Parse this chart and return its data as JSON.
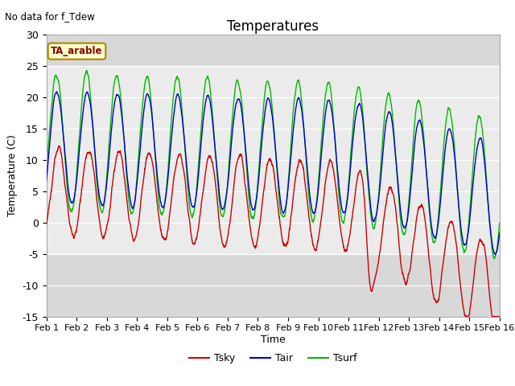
{
  "title": "Temperatures",
  "xlabel": "Time",
  "ylabel": "Temperature (C)",
  "note": "No data for f_Tdew",
  "subtitle_box": "TA_arable",
  "ylim": [
    -15,
    30
  ],
  "xlim": [
    0,
    15
  ],
  "xtick_labels": [
    "Feb 1",
    "Feb 2",
    "Feb 3",
    "Feb 4",
    "Feb 5",
    "Feb 6",
    "Feb 7",
    "Feb 8",
    "Feb 9",
    "Feb 10",
    "Feb 11",
    "Feb 12",
    "Feb 13",
    "Feb 14",
    "Feb 15",
    "Feb 16"
  ],
  "xtick_positions": [
    0,
    1,
    2,
    3,
    4,
    5,
    6,
    7,
    8,
    9,
    10,
    11,
    12,
    13,
    14,
    15
  ],
  "ytick_positions": [
    -15,
    -10,
    -5,
    0,
    5,
    10,
    15,
    20,
    25,
    30
  ],
  "color_tsky": "#cc0000",
  "color_tair": "#0000cc",
  "color_tsurf": "#00bb00",
  "axes_bg_light": "#d8d8d8",
  "band_color": "#ebebeb",
  "band_y1": -5,
  "band_y2": 25,
  "legend_labels": [
    "Tsky",
    "Tair",
    "Tsurf"
  ],
  "figsize": [
    6.4,
    4.8
  ],
  "dpi": 100
}
